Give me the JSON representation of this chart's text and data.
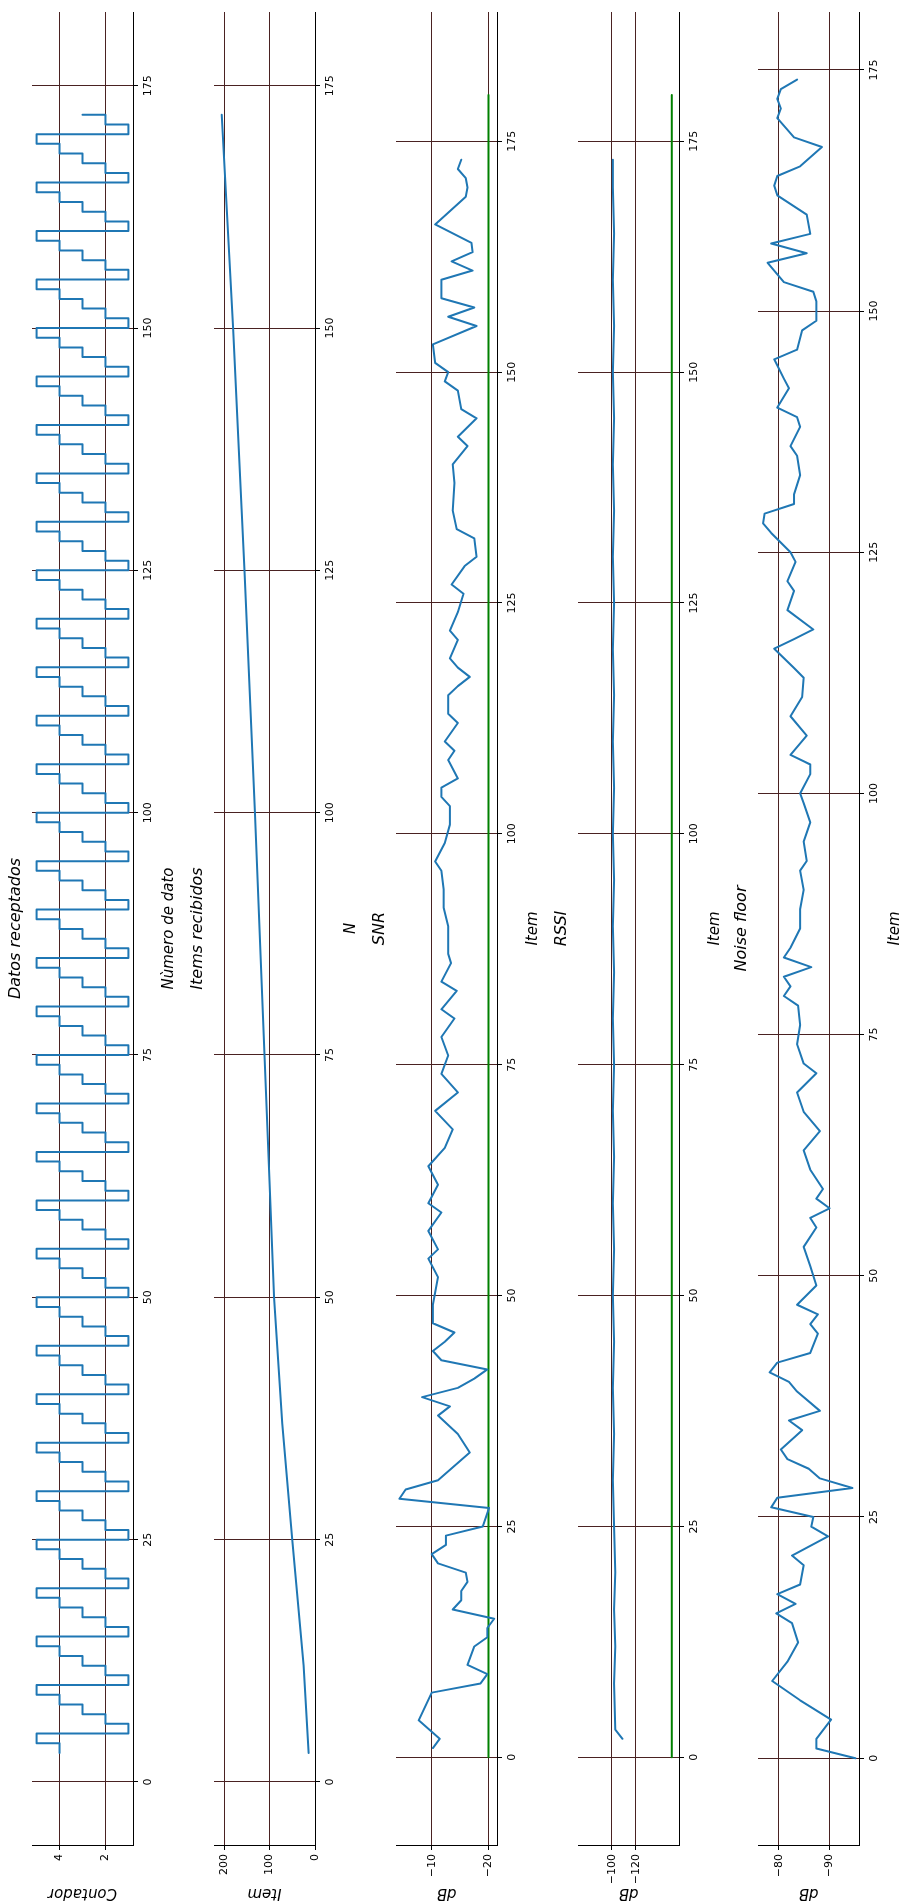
{
  "chart_data": [
    {
      "type": "step",
      "title": "Datos receptados",
      "xlabel": "Contador",
      "ylabel": "Nùmero de dato",
      "xlim": [
        5.2,
        0.8
      ],
      "xticks": [
        2,
        4
      ],
      "ylim": [
        -6.5,
        182.6
      ],
      "yticks": [
        0,
        25,
        50,
        75,
        100,
        125,
        150,
        175
      ],
      "grid": true,
      "marker": "none",
      "series": [
        {
          "color": "#1f77b4",
          "values": [
            3,
            4,
            5,
            6,
            7,
            8,
            9,
            10,
            11,
            12,
            13,
            14,
            15,
            16,
            17,
            18,
            19,
            20,
            21,
            22,
            23,
            24,
            25,
            26,
            27,
            28,
            29,
            30,
            31,
            32,
            33,
            34,
            35,
            36,
            37,
            38,
            39,
            40,
            41,
            42,
            43,
            44,
            45,
            46,
            47,
            48,
            49,
            50,
            51,
            52,
            53,
            54,
            55,
            56,
            57,
            58,
            59,
            60,
            61,
            62,
            63,
            64,
            65,
            66,
            67,
            68,
            69,
            70,
            71,
            72,
            73,
            74,
            75,
            76,
            77,
            78,
            79,
            80,
            81,
            82,
            83,
            84,
            85,
            86,
            87,
            88,
            89,
            90,
            91,
            92,
            93,
            94,
            95,
            96,
            97,
            98,
            99,
            100,
            101,
            102,
            103,
            104,
            105,
            106,
            107,
            108,
            109,
            110,
            111,
            112,
            113,
            114,
            115,
            116,
            117,
            118,
            119,
            120,
            121,
            122,
            123,
            124,
            125,
            126,
            127,
            128,
            129,
            130,
            131,
            132,
            133,
            134,
            135,
            136,
            137,
            138,
            139,
            140,
            141,
            142,
            143,
            144,
            145,
            146,
            147,
            148,
            149,
            150,
            151,
            152,
            153,
            154,
            155,
            156,
            157,
            158,
            159,
            160,
            161,
            162,
            163,
            164,
            165,
            166,
            167,
            168,
            169,
            170,
            171,
            172
          ],
          "x": [
            4,
            5,
            1,
            2,
            3,
            4,
            5,
            1,
            2,
            3,
            4,
            5,
            1,
            2,
            3,
            4,
            5,
            1,
            2,
            3,
            4,
            5,
            1,
            2,
            3,
            4,
            5,
            1,
            2,
            3,
            4,
            5,
            1,
            2,
            3,
            4,
            5,
            1,
            2,
            3,
            4,
            5,
            1,
            2,
            3,
            4,
            5,
            1,
            2,
            3,
            4,
            5,
            1,
            2,
            3,
            4,
            5,
            1,
            2,
            3,
            4,
            5,
            1,
            2,
            3,
            4,
            5,
            1,
            2,
            3,
            4,
            5,
            1,
            2,
            3,
            4,
            5,
            1,
            2,
            3,
            4,
            5,
            1,
            2,
            3,
            4,
            5,
            1,
            2,
            3,
            4,
            5,
            1,
            2,
            3,
            4,
            5,
            1,
            2,
            3,
            4,
            5,
            1,
            2,
            3,
            4,
            5,
            1,
            2,
            3,
            4,
            5,
            1,
            2,
            3,
            4,
            5,
            1,
            2,
            3,
            4,
            5,
            1,
            2,
            3,
            4,
            5,
            1,
            2,
            3,
            4,
            5,
            1,
            2,
            3,
            4,
            5,
            1,
            2,
            3,
            4,
            5,
            1,
            2,
            3,
            4,
            5,
            1,
            2,
            3,
            4,
            5,
            1,
            2,
            3,
            4,
            5,
            1,
            2,
            3,
            4,
            5,
            1,
            2,
            3,
            4,
            5,
            1,
            2,
            3
          ]
        }
      ]
    },
    {
      "type": "line",
      "title": "Items recibidos",
      "xlabel": "Item",
      "ylabel": "N",
      "xlim": [
        222,
        0
      ],
      "xticks": [
        0,
        100,
        200
      ],
      "ylim": [
        -6.5,
        182.6
      ],
      "yticks": [
        0,
        25,
        50,
        75,
        100,
        125,
        150,
        175
      ],
      "grid": true,
      "marker": "none",
      "series": [
        {
          "color": "#1f77b4",
          "values": [
            3,
            12,
            25,
            37,
            50,
            62,
            75,
            100,
            125,
            150,
            172
          ],
          "x": [
            14,
            25,
            50,
            72,
            90,
            100,
            111,
            132,
            155,
            180,
            205
          ]
        }
      ]
    },
    {
      "type": "line",
      "title": "SNR",
      "xlabel": "dB",
      "ylabel": "Item",
      "xlim": [
        -3.7,
        -21.5
      ],
      "xticks": [
        {
          "value": -20,
          "label": "−20"
        },
        {
          "value": -10,
          "label": "−10"
        }
      ],
      "ylim": [
        -9.5,
        189
      ],
      "yticks": [
        0,
        25,
        50,
        75,
        100,
        125,
        150,
        175
      ],
      "grid": true,
      "marker": "none",
      "series": [
        {
          "color": "#1f77b4",
          "values": [
            1,
            2,
            4,
            7,
            8,
            9,
            10,
            12,
            13,
            14,
            15,
            16,
            17,
            18,
            19,
            20,
            21,
            22,
            23,
            24,
            25,
            27,
            28,
            29,
            30,
            33,
            35,
            37,
            38,
            39,
            40,
            41,
            42,
            43,
            44,
            45,
            46,
            47,
            49,
            52,
            54,
            55,
            57,
            59,
            60,
            62,
            64,
            66,
            68,
            70,
            72,
            74,
            76,
            78,
            80,
            81,
            83,
            84,
            86,
            87,
            90,
            92,
            94,
            96,
            97,
            99,
            101,
            103,
            104,
            105,
            106,
            108,
            109,
            110,
            112,
            113,
            115,
            116,
            117,
            118,
            119,
            121,
            122,
            124,
            126,
            127,
            129,
            130,
            132,
            133,
            135,
            138,
            140,
            142,
            143,
            145,
            146,
            148,
            149,
            150,
            151,
            153,
            155,
            156,
            157,
            158,
            160,
            161,
            162,
            163,
            164,
            166,
            169,
            170,
            171,
            172,
            173
          ],
          "x": [
            -10.2,
            -11.4,
            -7.7,
            -10,
            -18.6,
            -19.8,
            -16.3,
            -17.5,
            -19.8,
            -19.8,
            -21,
            -13.7,
            -15.2,
            -15.2,
            -16.3,
            -16,
            -11.1,
            -10,
            -12.5,
            -12.5,
            -19,
            -20.1,
            -4.3,
            -5.4,
            -11.1,
            -16.7,
            -14.6,
            -11.1,
            -13.2,
            -8.3,
            -14.6,
            -17.5,
            -19.8,
            -11.7,
            -10.2,
            -12.3,
            -14,
            -10.2,
            -10.2,
            -11.1,
            -9.4,
            -11.1,
            -9.4,
            -11.7,
            -9.4,
            -11.1,
            -9.4,
            -12.3,
            -13.7,
            -10.6,
            -14.6,
            -11.7,
            -12.9,
            -11.7,
            -14,
            -11.7,
            -14.4,
            -11.7,
            -13.4,
            -12.9,
            -12.9,
            -12.1,
            -12.1,
            -11.7,
            -10.6,
            -12.3,
            -13.2,
            -13.2,
            -11.7,
            -11.7,
            -14.6,
            -12.9,
            -14,
            -12.3,
            -14.6,
            -12.9,
            -12.9,
            -14.6,
            -16.7,
            -14.6,
            -13.2,
            -14.6,
            -13.2,
            -14.6,
            -15.6,
            -13.5,
            -15.8,
            -17.9,
            -17.5,
            -14.4,
            -13.7,
            -14,
            -13.7,
            -16.3,
            -14.6,
            -17.9,
            -15.2,
            -14.6,
            -12.3,
            -12.9,
            -10.6,
            -10.2,
            -17.9,
            -12.9,
            -17.5,
            -11.7,
            -11.7,
            -17.2,
            -13.5,
            -17.2,
            -17,
            -10.6,
            -16,
            -16.3,
            -16,
            -14.6,
            -15.2
          ]
        },
        {
          "color": "#008000",
          "values": [
            0,
            180
          ],
          "x": [
            -20,
            -20
          ]
        }
      ]
    },
    {
      "type": "line",
      "title": "RSSI",
      "xlabel": "dB",
      "ylabel": "Item",
      "xlim": [
        -72,
        -156
      ],
      "xticks": [
        {
          "value": -120,
          "label": "−120"
        },
        {
          "value": -100,
          "label": "−100"
        }
      ],
      "ylim": [
        -9.5,
        189
      ],
      "yticks": [
        0,
        25,
        50,
        75,
        100,
        125,
        150,
        175
      ],
      "grid": true,
      "marker": "none",
      "series": [
        {
          "color": "#1f77b4",
          "values": [
            2,
            3,
            8,
            12,
            16,
            20,
            25,
            30,
            35,
            40,
            45,
            50,
            55,
            60,
            65,
            70,
            75,
            80,
            85,
            90,
            95,
            100,
            105,
            110,
            115,
            120,
            125,
            130,
            135,
            140,
            145,
            150,
            155,
            160,
            165,
            170,
            173
          ],
          "x": [
            -109,
            -103,
            -102,
            -103,
            -102,
            -103,
            -102,
            -101,
            -102,
            -101,
            -102,
            -101,
            -102,
            -101,
            -102,
            -101,
            -102,
            -101,
            -102,
            -101,
            -102,
            -101,
            -102,
            -101,
            -102,
            -101,
            -102,
            -101,
            -102,
            -101,
            -102,
            -101,
            -102,
            -101,
            -102,
            -101,
            -101
          ]
        },
        {
          "color": "#008000",
          "values": [
            0,
            180
          ],
          "x": [
            -150,
            -150
          ]
        }
      ]
    },
    {
      "type": "line",
      "title": "Noise floor",
      "xlabel": "dB",
      "ylabel": "Item",
      "xlim": [
        -75.9,
        -95.8
      ],
      "xticks": [
        {
          "value": -90,
          "label": "−90"
        },
        {
          "value": -80,
          "label": "−80"
        }
      ],
      "ylim": [
        -9,
        181
      ],
      "yticks": [
        0,
        25,
        50,
        75,
        100,
        125,
        150,
        175
      ],
      "grid": true,
      "marker": "none",
      "series": [
        {
          "color": "#1f77b4",
          "values": [
            0,
            1,
            2,
            4,
            6,
            8,
            10,
            12,
            14,
            15,
            16,
            17,
            18,
            20,
            21,
            23,
            24,
            25,
            26,
            27,
            28,
            29,
            30,
            31,
            32,
            34,
            35,
            36,
            38,
            39,
            40,
            41,
            42,
            44,
            45,
            46,
            47,
            49,
            51,
            53,
            55,
            56,
            57,
            58,
            59,
            61,
            63,
            65,
            67,
            69,
            71,
            72,
            74,
            76,
            78,
            79,
            80,
            81,
            82,
            83,
            84,
            86,
            88,
            90,
            92,
            93,
            95,
            97,
            99,
            100,
            102,
            103,
            104,
            106,
            108,
            110,
            112,
            113,
            115,
            116,
            117,
            119,
            121,
            122,
            124,
            125,
            127,
            128,
            129,
            130,
            131,
            133,
            135,
            136,
            138,
            139,
            140,
            142,
            143,
            145,
            146,
            148,
            149,
            151,
            152,
            153,
            155,
            156,
            157,
            158,
            160,
            162,
            163,
            164,
            165,
            167,
            168,
            170,
            171,
            172,
            173,
            174
          ],
          "x": [
            -95.1,
            -87.4,
            -87.4,
            -90.3,
            -84.2,
            -78.7,
            -81.7,
            -83.8,
            -82.6,
            -79.5,
            -83.3,
            -79.7,
            -84.2,
            -84.9,
            -82.6,
            -89.7,
            -86.4,
            -86.8,
            -78.5,
            -79.7,
            -94.5,
            -88.1,
            -85.9,
            -81.7,
            -80.4,
            -84.6,
            -82,
            -88.1,
            -83.6,
            -82,
            -78.2,
            -79.7,
            -86.2,
            -87.7,
            -86.2,
            -87.7,
            -83.6,
            -87.4,
            -86.2,
            -84.9,
            -87.4,
            -86.2,
            -90,
            -87.4,
            -88.7,
            -86.2,
            -84.9,
            -88.1,
            -84.9,
            -83.6,
            -87.4,
            -84.9,
            -83.6,
            -84.2,
            -83.8,
            -81,
            -82.3,
            -81,
            -86.4,
            -81,
            -82.3,
            -84.2,
            -84.2,
            -84.9,
            -84.2,
            -85.5,
            -84.9,
            -86.2,
            -84.9,
            -84.2,
            -86.2,
            -86.2,
            -82.3,
            -85.5,
            -82.3,
            -84.6,
            -84.9,
            -83,
            -79.1,
            -83,
            -86.8,
            -81.7,
            -83,
            -81.7,
            -83.3,
            -82.3,
            -78.5,
            -76.9,
            -77.2,
            -83,
            -83,
            -84.2,
            -83.6,
            -82.3,
            -84.2,
            -83.6,
            -79.7,
            -82,
            -81,
            -79.1,
            -83.6,
            -84.6,
            -87.4,
            -87.4,
            -86.8,
            -81,
            -77.8,
            -85.5,
            -78.5,
            -86.2,
            -85.5,
            -79.7,
            -79.1,
            -79.7,
            -84.2,
            -88.5,
            -83,
            -79.7,
            -80.4,
            -79.7,
            -80.4,
            -83.6
          ]
        }
      ]
    }
  ]
}
